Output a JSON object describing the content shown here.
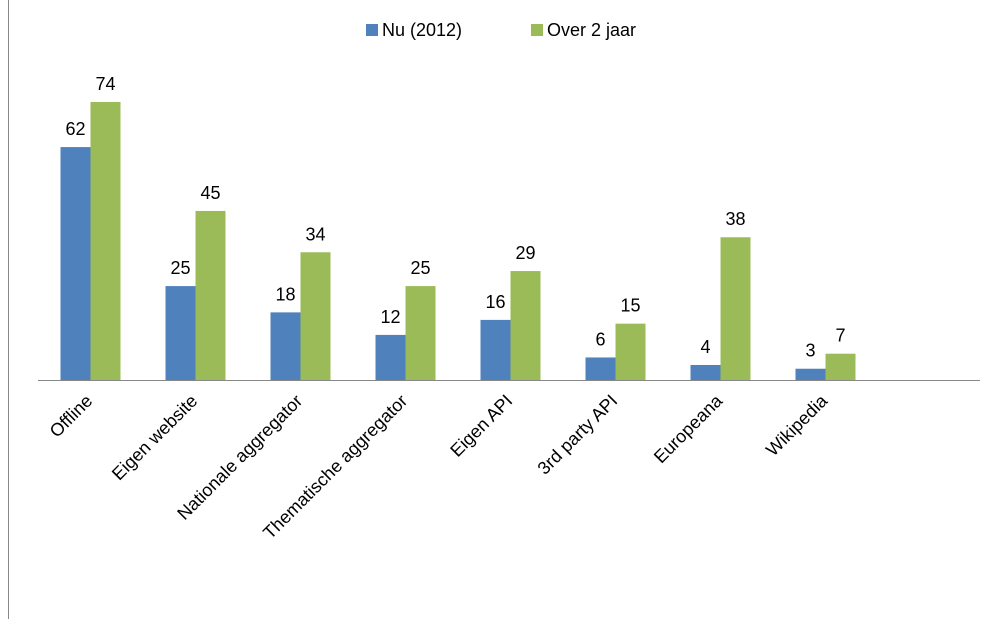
{
  "chart_data": {
    "type": "bar",
    "categories": [
      "Offline",
      "Eigen website",
      "Nationale aggregator",
      "Thematische aggregator",
      "Eigen API",
      "3rd party API",
      "Europeana",
      "Wikipedia"
    ],
    "series": [
      {
        "name": "Nu (2012)",
        "color": "#4f81bd",
        "values": [
          62,
          25,
          18,
          12,
          16,
          6,
          4,
          3
        ]
      },
      {
        "name": "Over 2 jaar",
        "color": "#9bbb59",
        "values": [
          74,
          45,
          34,
          25,
          29,
          15,
          38,
          7
        ]
      }
    ],
    "legend": "top"
  }
}
